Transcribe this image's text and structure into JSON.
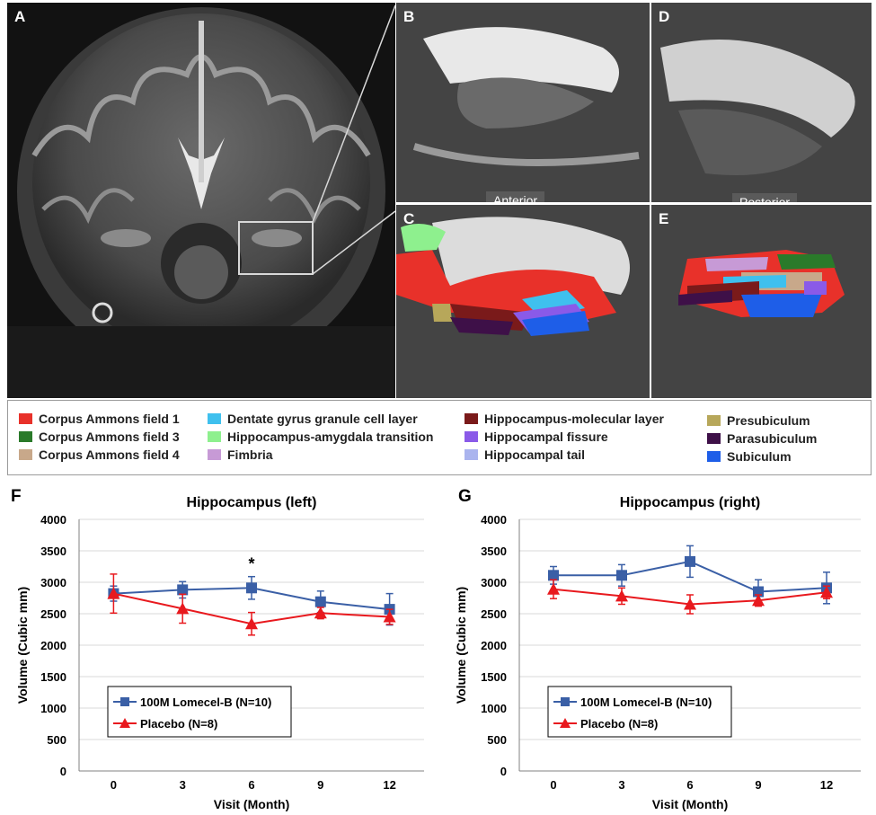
{
  "panels": {
    "A": "A",
    "B": "B",
    "C": "C",
    "D": "D",
    "E": "E",
    "anterior": "Anterior",
    "posterior": "Posterior"
  },
  "legend": [
    {
      "label": "Corpus Ammons field 1",
      "color": "#e8312a"
    },
    {
      "label": "Corpus Ammons field 3",
      "color": "#2a7a2a"
    },
    {
      "label": "Corpus Ammons field 4",
      "color": "#c8a88a"
    },
    {
      "label": "Dentate gyrus granule cell layer",
      "color": "#3fc0ee"
    },
    {
      "label": "Hippocampus-amygdala transition",
      "color": "#8ef08e"
    },
    {
      "label": "Fimbria",
      "color": "#c79ad6"
    },
    {
      "label": "Hippocampus-molecular layer",
      "color": "#7a1a1a"
    },
    {
      "label": "Hippocampal fissure",
      "color": "#8a5ae8"
    },
    {
      "label": "Hippocampal tail",
      "color": "#aab4ee"
    },
    {
      "label": "Presubiculum",
      "color": "#b7a75a"
    },
    {
      "label": "Parasubiculum",
      "color": "#3e1048"
    },
    {
      "label": "Subiculum",
      "color": "#1e5ee8"
    }
  ],
  "colors": {
    "lomecel": "#3a5fa6",
    "placebo": "#e8191e"
  },
  "chart_data": [
    {
      "letter": "F",
      "type": "line",
      "title": "Hippocampus (left)",
      "xlabel": "Visit (Month)",
      "ylabel": "Volume (Cubic mm)",
      "x": [
        0,
        3,
        6,
        9,
        12
      ],
      "ylim": [
        0,
        4000
      ],
      "yticks": [
        "0",
        "500",
        "1000",
        "1500",
        "2000",
        "2500",
        "3000",
        "3500",
        "4000"
      ],
      "xticks": [
        "0",
        "3",
        "6",
        "9",
        "12"
      ],
      "grid": true,
      "legend_position": "bottom-left",
      "series": [
        {
          "name": "100M Lomecel-B (N=10)",
          "marker": "square",
          "values": [
            2820,
            2880,
            2910,
            2690,
            2570
          ],
          "err": [
            120,
            130,
            180,
            170,
            250
          ]
        },
        {
          "name": "Placebo (N=8)",
          "marker": "triangle",
          "values": [
            2820,
            2580,
            2340,
            2510,
            2450
          ],
          "err": [
            310,
            230,
            180,
            90,
            120
          ]
        }
      ],
      "annotation": {
        "text": "*",
        "x": 6
      }
    },
    {
      "letter": "G",
      "type": "line",
      "title": "Hippocampus (right)",
      "xlabel": "Visit (Month)",
      "ylabel": "Volume (Cubic mm)",
      "x": [
        0,
        3,
        6,
        9,
        12
      ],
      "ylim": [
        0,
        4000
      ],
      "yticks": [
        "0",
        "500",
        "1000",
        "1500",
        "2000",
        "2500",
        "3000",
        "3500",
        "4000"
      ],
      "xticks": [
        "0",
        "3",
        "6",
        "9",
        "12"
      ],
      "grid": true,
      "legend_position": "bottom-left",
      "series": [
        {
          "name": "100M Lomecel-B (N=10)",
          "marker": "square",
          "values": [
            3110,
            3110,
            3330,
            2850,
            2910
          ],
          "err": [
            140,
            170,
            250,
            190,
            250
          ]
        },
        {
          "name": "Placebo (N=8)",
          "marker": "triangle",
          "values": [
            2890,
            2780,
            2650,
            2710,
            2840
          ],
          "err": [
            150,
            130,
            150,
            90,
            100
          ]
        }
      ]
    }
  ]
}
